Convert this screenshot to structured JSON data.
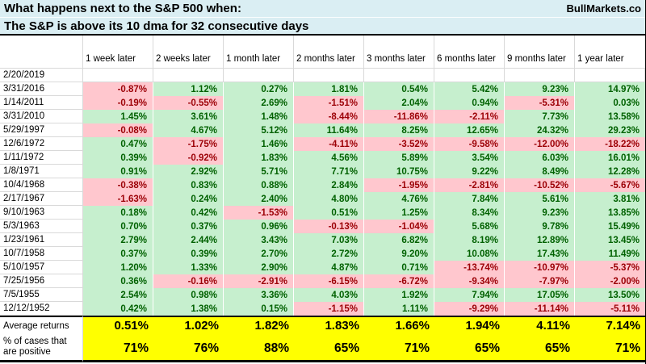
{
  "brand": "BullMarkets.co",
  "chart_data": {
    "type": "table",
    "title": "What happens next to the S&P 500 when:",
    "subtitle": "The S&P is above its 10 dma for 32 consecutive days",
    "columns": [
      "1 week later",
      "2 weeks later",
      "1 month later",
      "2 months later",
      "3 months later",
      "6 months later",
      "9 months later",
      "1 year later"
    ],
    "rows": [
      {
        "date": "2/20/2019",
        "values": [
          "",
          "",
          "",
          "",
          "",
          "",
          "",
          ""
        ]
      },
      {
        "date": "3/31/2016",
        "values": [
          "-0.87%",
          "1.12%",
          "0.27%",
          "1.81%",
          "0.54%",
          "5.42%",
          "9.23%",
          "14.97%"
        ]
      },
      {
        "date": "1/14/2011",
        "values": [
          "-0.19%",
          "-0.55%",
          "2.69%",
          "-1.51%",
          "2.04%",
          "0.94%",
          "-5.31%",
          "0.03%"
        ]
      },
      {
        "date": "3/31/2010",
        "values": [
          "1.45%",
          "3.61%",
          "1.48%",
          "-8.44%",
          "-11.86%",
          "-2.11%",
          "7.73%",
          "13.58%"
        ]
      },
      {
        "date": "5/29/1997",
        "values": [
          "-0.08%",
          "4.67%",
          "5.12%",
          "11.64%",
          "8.25%",
          "12.65%",
          "24.32%",
          "29.23%"
        ]
      },
      {
        "date": "12/6/1972",
        "values": [
          "0.47%",
          "-1.75%",
          "1.46%",
          "-4.11%",
          "-3.52%",
          "-9.58%",
          "-12.00%",
          "-18.22%"
        ]
      },
      {
        "date": "1/11/1972",
        "values": [
          "0.39%",
          "-0.92%",
          "1.83%",
          "4.56%",
          "5.89%",
          "3.54%",
          "6.03%",
          "16.01%"
        ]
      },
      {
        "date": "1/8/1971",
        "values": [
          "0.91%",
          "2.92%",
          "5.71%",
          "7.71%",
          "10.75%",
          "9.22%",
          "8.49%",
          "12.28%"
        ]
      },
      {
        "date": "10/4/1968",
        "values": [
          "-0.38%",
          "0.83%",
          "0.88%",
          "2.84%",
          "-1.95%",
          "-2.81%",
          "-10.52%",
          "-5.67%"
        ]
      },
      {
        "date": "2/17/1967",
        "values": [
          "-1.63%",
          "0.24%",
          "2.40%",
          "4.80%",
          "4.76%",
          "7.84%",
          "5.61%",
          "3.81%"
        ]
      },
      {
        "date": "9/10/1963",
        "values": [
          "0.18%",
          "0.42%",
          "-1.53%",
          "0.51%",
          "1.25%",
          "8.34%",
          "9.23%",
          "13.85%"
        ]
      },
      {
        "date": "5/3/1963",
        "values": [
          "0.70%",
          "0.37%",
          "0.96%",
          "-0.13%",
          "-1.04%",
          "5.68%",
          "9.78%",
          "15.49%"
        ]
      },
      {
        "date": "1/23/1961",
        "values": [
          "2.79%",
          "2.44%",
          "3.43%",
          "7.03%",
          "6.82%",
          "8.19%",
          "12.89%",
          "13.45%"
        ]
      },
      {
        "date": "10/7/1958",
        "values": [
          "0.37%",
          "0.39%",
          "2.70%",
          "2.72%",
          "9.20%",
          "10.08%",
          "17.43%",
          "11.49%"
        ]
      },
      {
        "date": "5/10/1957",
        "values": [
          "1.20%",
          "1.33%",
          "2.90%",
          "4.87%",
          "0.71%",
          "-13.74%",
          "-10.97%",
          "-5.37%"
        ]
      },
      {
        "date": "7/25/1956",
        "values": [
          "0.36%",
          "-0.16%",
          "-2.91%",
          "-6.15%",
          "-6.72%",
          "-9.34%",
          "-7.97%",
          "-2.00%"
        ]
      },
      {
        "date": "7/5/1955",
        "values": [
          "2.54%",
          "0.98%",
          "3.36%",
          "4.03%",
          "1.92%",
          "7.94%",
          "17.05%",
          "13.50%"
        ]
      },
      {
        "date": "12/12/1952",
        "values": [
          "0.42%",
          "1.38%",
          "0.15%",
          "-1.15%",
          "1.11%",
          "-9.29%",
          "-11.14%",
          "-5.11%"
        ]
      }
    ],
    "summary": {
      "average_label": "Average returns",
      "average_values": [
        "0.51%",
        "1.02%",
        "1.82%",
        "1.83%",
        "1.66%",
        "1.94%",
        "4.11%",
        "7.14%"
      ],
      "positive_label_line1": "% of cases that",
      "positive_label_line2": "are positive",
      "positive_values": [
        "71%",
        "76%",
        "88%",
        "65%",
        "71%",
        "65%",
        "65%",
        "71%"
      ]
    }
  },
  "colors": {
    "title_bg": "#daeef3",
    "positive_bg": "#c6efce",
    "positive_text": "#006100",
    "negative_bg": "#ffc7ce",
    "negative_text": "#9c0006",
    "summary_bg": "#ffff00",
    "grid_line": "#d9d9d9",
    "frame": "#000000"
  }
}
